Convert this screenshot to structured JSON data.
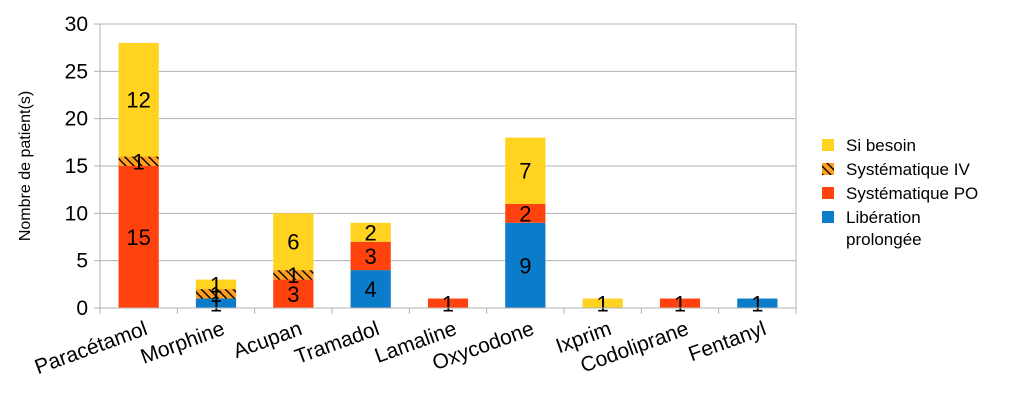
{
  "chart_data": {
    "type": "bar",
    "stacked": true,
    "categories": [
      "Paracétamol",
      "Morphine",
      "Acupan",
      "Tramadol",
      "Lamaline",
      "Oxycodone",
      "Ixprim",
      "Codoliprane",
      "Fentanyl"
    ],
    "series": [
      {
        "name": "Libération prolongée",
        "color": "#0a7cc9",
        "values": [
          0,
          1,
          0,
          4,
          0,
          9,
          0,
          0,
          1
        ]
      },
      {
        "name": "Systématique PO",
        "color": "#ff420e",
        "values": [
          15,
          0,
          3,
          3,
          1,
          2,
          0,
          1,
          0
        ]
      },
      {
        "name": "Systématique IV",
        "color": "#ff9e1f",
        "pattern": "hatched",
        "values": [
          1,
          1,
          1,
          0,
          0,
          0,
          0,
          0,
          0
        ]
      },
      {
        "name": "Si besoin",
        "color": "#ffd320",
        "values": [
          12,
          1,
          6,
          2,
          0,
          7,
          1,
          0,
          0
        ]
      }
    ],
    "ylabel": "Nombre de patient(s)",
    "xlabel": "",
    "ylim": [
      0,
      30
    ],
    "yticks": [
      0,
      5,
      10,
      15,
      20,
      25,
      30
    ],
    "grid": true,
    "legend_position": "right",
    "legend_order": [
      "Si besoin",
      "Systématique IV",
      "Systématique PO",
      "Libération prolongée"
    ]
  }
}
